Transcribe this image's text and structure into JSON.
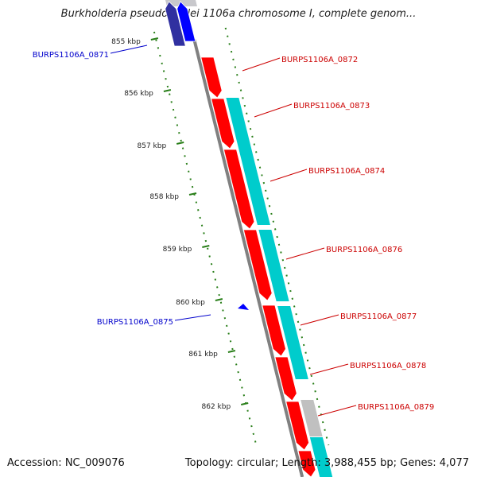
{
  "title": "Burkholderia pseudomallei 1106a chromosome I, complete genom...",
  "accession_label": "Accession: NC_009076",
  "summary_label": "Topology: circular; Length: 3,988,455 bp; Genes: 4,077",
  "colors": {
    "forward_gene": "#ff0000",
    "reverse_gene": "#0000ff",
    "cds_track": "#00cccc",
    "backbone": "#808080",
    "tick": "#2a7f1a",
    "forward_label": "#cc0000",
    "reverse_label": "#0000cc"
  },
  "kbp_ticks": [
    "855 kbp",
    "856 kbp",
    "857 kbp",
    "858 kbp",
    "859 kbp",
    "860 kbp",
    "861 kbp",
    "862 kbp"
  ],
  "forward_genes": [
    "BURPS1106A_0872",
    "BURPS1106A_0873",
    "BURPS1106A_0874",
    "BURPS1106A_0876",
    "BURPS1106A_0877",
    "BURPS1106A_0878",
    "BURPS1106A_0879"
  ],
  "reverse_genes": [
    "BURPS1106A_0871",
    "BURPS1106A_0875"
  ]
}
